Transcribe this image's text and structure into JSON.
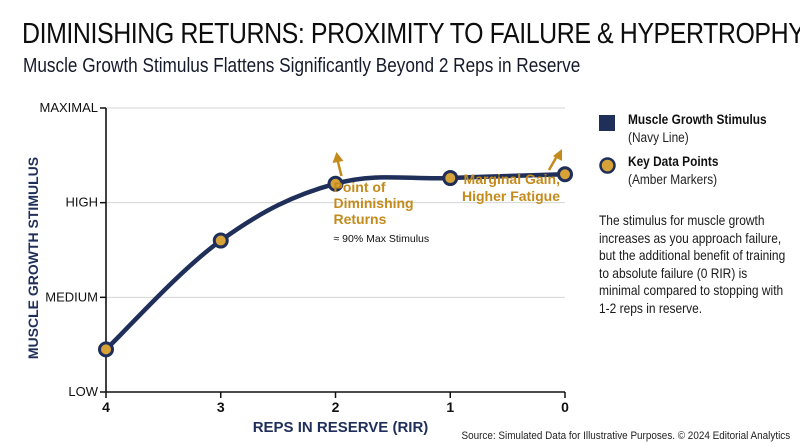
{
  "header": {
    "title": "DIMINISHING RETURNS: PROXIMITY TO FAILURE & HYPERTROPHY",
    "subtitle": "Muscle Growth Stimulus Flattens Significantly Beyond 2 Reps in Reserve"
  },
  "chart_data": {
    "type": "line",
    "xlabel": "REPS IN RESERVE (RIR)",
    "ylabel": "MUSCLE GROWTH STIMULUS",
    "x_ticks": [
      "4",
      "3",
      "2",
      "1",
      "0"
    ],
    "y_ticks": [
      "LOW",
      "MEDIUM",
      "HIGH",
      "MAXIMAL"
    ],
    "x_reversed": true,
    "xlim": [
      4,
      0
    ],
    "ylim": [
      0,
      3
    ],
    "grid": "horizontal",
    "series": [
      {
        "name": "Muscle Growth Stimulus",
        "color": "#1f2f5a",
        "marker_color": "#d7a237",
        "points": [
          {
            "x": 4,
            "y": 0.45
          },
          {
            "x": 3,
            "y": 1.6
          },
          {
            "x": 2,
            "y": 2.2
          },
          {
            "x": 1,
            "y": 2.26
          },
          {
            "x": 0,
            "y": 2.3
          }
        ]
      }
    ],
    "annotations": [
      {
        "x": 2,
        "text_lines": [
          "Point of",
          "Diminishing",
          "Returns"
        ],
        "subtext": "≈ 90% Max Stimulus"
      },
      {
        "x": 0,
        "text_lines": [
          "Marginal Gain,",
          "Higher Fatigue"
        ],
        "subtext": ""
      }
    ]
  },
  "legend": {
    "items": [
      {
        "label": "Muscle Growth Stimulus",
        "sublabel": "(Navy Line)",
        "icon": "square"
      },
      {
        "label": "Key Data Points",
        "sublabel": "(Amber Markers)",
        "icon": "circle"
      }
    ]
  },
  "note": "The stimulus for muscle growth increases as you approach failure, but the additional benefit of training to absolute failure (0 RIR) is minimal compared to stopping with 1-2 reps in reserve.",
  "source": "Source: Simulated Data for Illustrative Purposes. © 2024 Editorial Analytics",
  "colors": {
    "navy": "#1f2f5a",
    "amber": "#d7a237",
    "annotation_text": "#c48b1c",
    "grid": "#d4d4d4",
    "axis": "#111111"
  }
}
